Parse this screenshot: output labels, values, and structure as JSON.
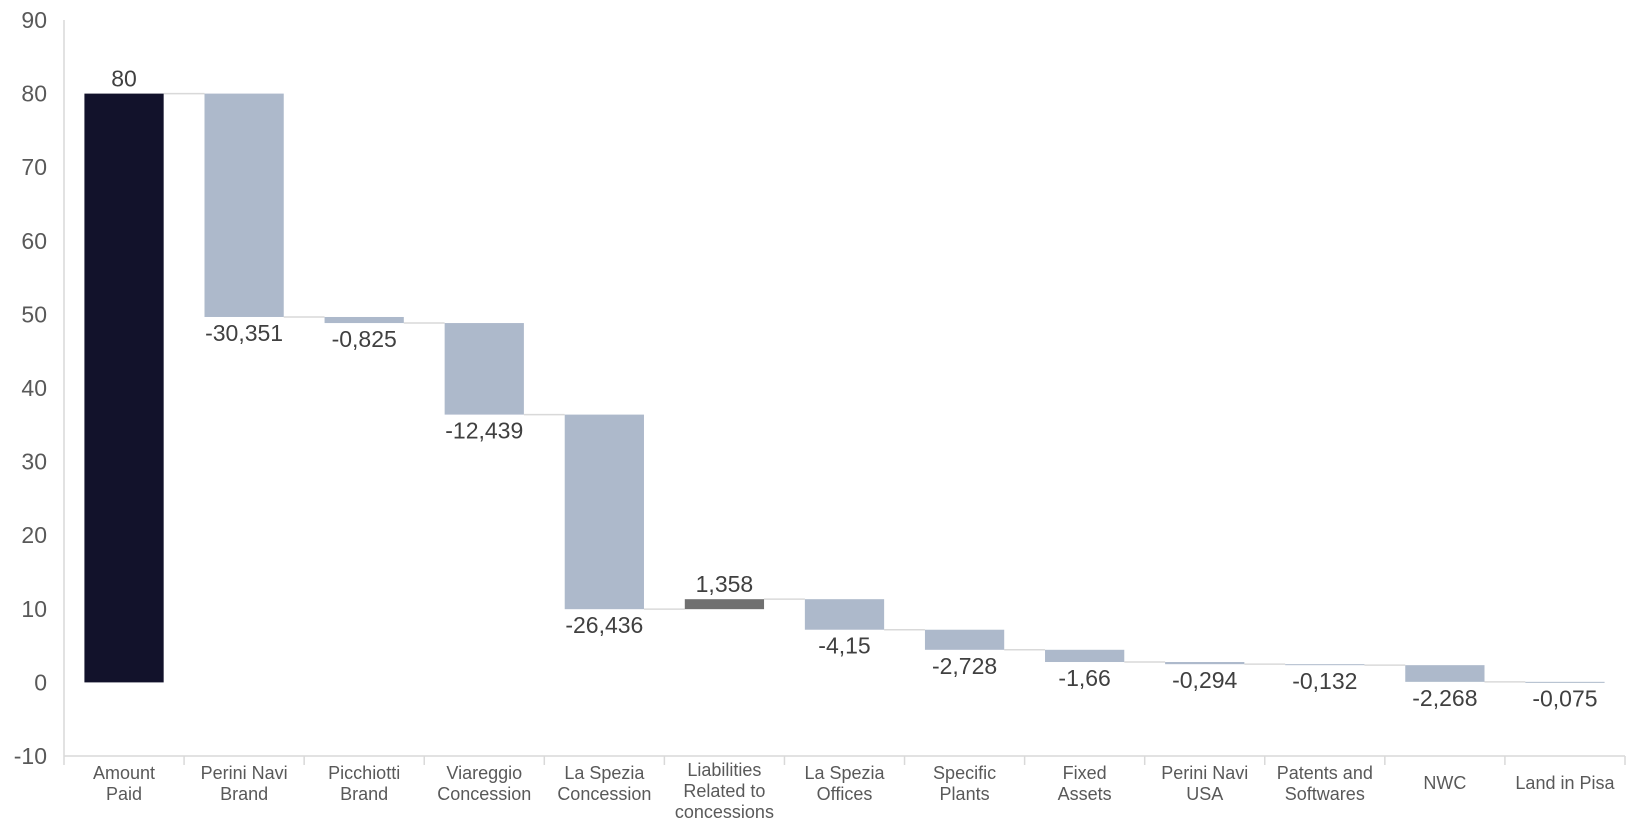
{
  "chart_data": {
    "type": "waterfall",
    "ylim": [
      -10,
      90
    ],
    "yticks": [
      "-10",
      "0",
      "10",
      "20",
      "30",
      "40",
      "50",
      "60",
      "70",
      "80",
      "90"
    ],
    "grid": false,
    "categories": [
      [
        "Amount",
        "Paid"
      ],
      [
        "Perini Navi",
        "Brand"
      ],
      [
        "Picchiotti",
        "Brand"
      ],
      [
        "Viareggio",
        "Concession"
      ],
      [
        "La Spezia",
        "Concession"
      ],
      [
        "Liabilities",
        "Related to",
        "concessions"
      ],
      [
        "La Spezia",
        "Offices"
      ],
      [
        "Specific",
        "Plants"
      ],
      [
        "Fixed",
        "Assets"
      ],
      [
        "Perini Navi",
        "USA"
      ],
      [
        "Patents and",
        "Softwares"
      ],
      [
        "NWC"
      ],
      [
        "Land in Pisa"
      ]
    ],
    "values": [
      80,
      -30.351,
      -0.825,
      -12.439,
      -26.436,
      1.358,
      -4.15,
      -2.728,
      -1.66,
      -0.294,
      -0.132,
      -2.268,
      -0.075
    ],
    "labels": [
      "80",
      "-30,351",
      "-0,825",
      "-12,439",
      "-26,436",
      "1,358",
      "-4,15",
      "-2,728",
      "-1,66",
      "-0,294",
      "-0,132",
      "-2,268",
      "-0,075"
    ],
    "kinds": [
      "total",
      "decrease",
      "decrease",
      "decrease",
      "decrease",
      "increase",
      "decrease",
      "decrease",
      "decrease",
      "decrease",
      "decrease",
      "decrease",
      "decrease"
    ],
    "colors": {
      "total": "#12122b",
      "decrease": "#adb9cb",
      "increase": "#707070",
      "connector": "#d9d9d9",
      "axis": "#d9d9d9"
    }
  }
}
